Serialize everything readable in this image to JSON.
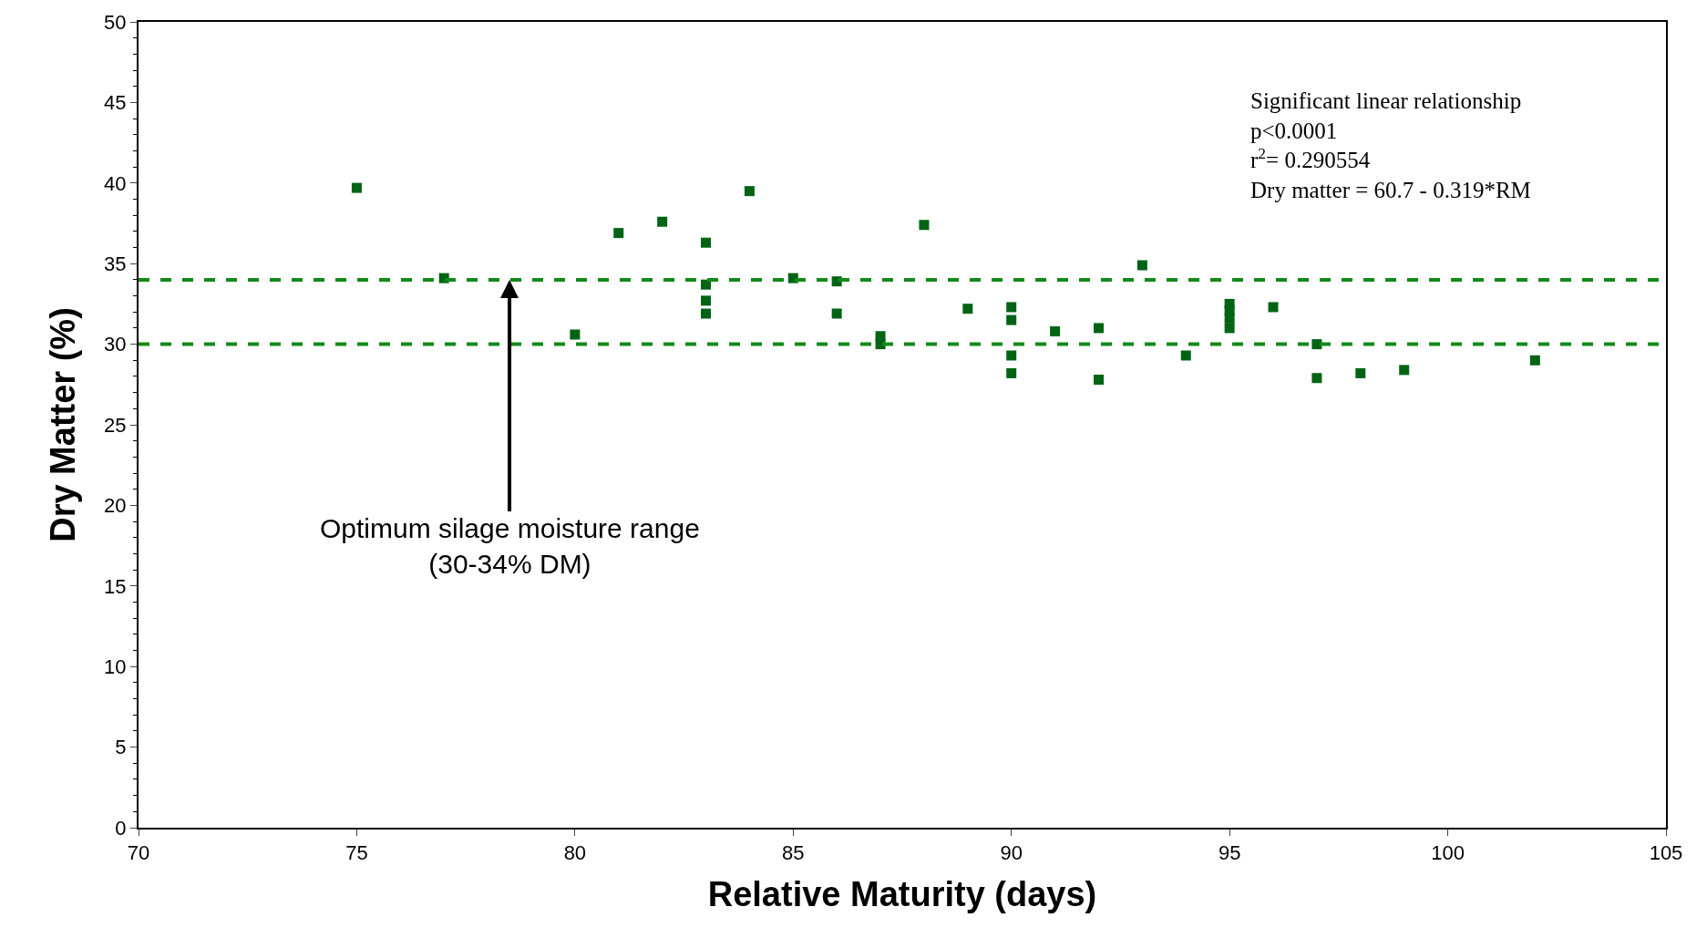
{
  "chart_data": {
    "type": "scatter",
    "xlabel": "Relative Maturity (days)",
    "ylabel": "Dry Matter (%)",
    "x": [
      75,
      77,
      80,
      81,
      82,
      83,
      83,
      83,
      83,
      84,
      85,
      86,
      86,
      87,
      87,
      88,
      89,
      90,
      90,
      90,
      90,
      91,
      92,
      92,
      93,
      94,
      95,
      95,
      95,
      95,
      96,
      97,
      97,
      98,
      99,
      102
    ],
    "values": [
      39.7,
      34.1,
      30.6,
      36.9,
      37.6,
      36.3,
      33.7,
      32.7,
      31.9,
      39.5,
      34.1,
      33.9,
      31.9,
      30.5,
      30.0,
      37.4,
      32.2,
      32.3,
      31.5,
      29.3,
      28.2,
      30.8,
      31.0,
      27.8,
      34.9,
      29.3,
      32.5,
      32.1,
      31.6,
      31.0,
      32.3,
      30.0,
      27.9,
      28.2,
      28.4,
      29.0
    ],
    "color": "#006414",
    "marker": "square",
    "xlim": [
      70,
      105
    ],
    "xticks": [
      70,
      75,
      80,
      85,
      90,
      95,
      100,
      105
    ],
    "ylim": [
      0,
      50
    ],
    "yticks": [
      0,
      5,
      10,
      15,
      20,
      25,
      30,
      35,
      40,
      45,
      50
    ],
    "ref_lines": [
      {
        "axis": "y",
        "value": 34,
        "color": "#13891a",
        "line_style": "dashed"
      },
      {
        "axis": "y",
        "value": 30,
        "color": "#13891a",
        "line_style": "dashed"
      }
    ],
    "annotations": [
      {
        "text": "Optimum silage moisture range\n(30-34% DM)",
        "x": 78.5,
        "y": 34
      },
      "Significant linear relationship\np<0.0001\nr$^{2}$= 0.290554\nDry matter = 60.7 - 0.319*RM"
    ]
  }
}
